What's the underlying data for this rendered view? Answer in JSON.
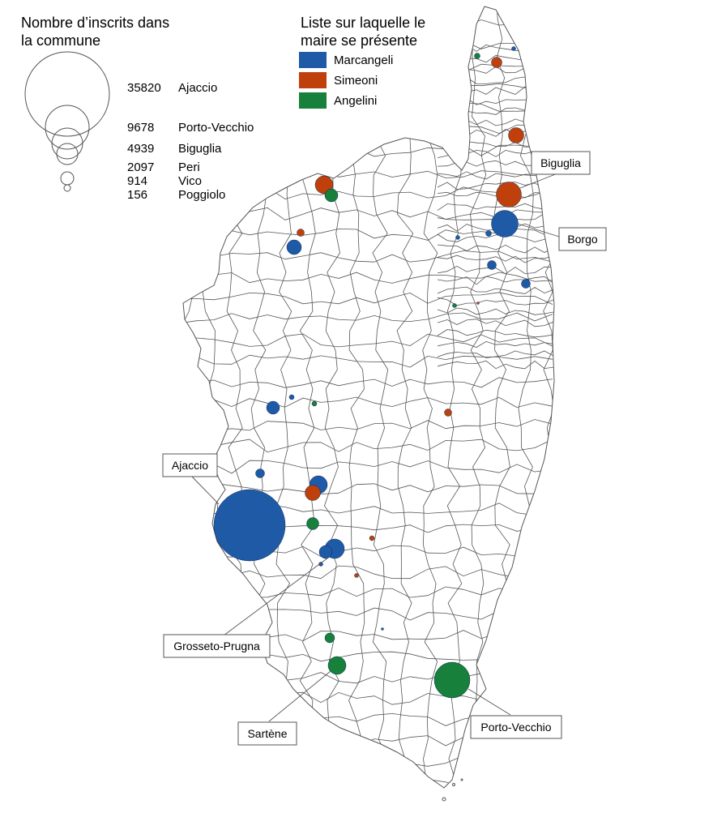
{
  "size_legend": {
    "title_line1": "Nombre d’inscrits dans",
    "title_line2": "la commune",
    "entries": [
      {
        "value": "35820",
        "name": "Ajaccio"
      },
      {
        "value": "9678",
        "name": "Porto-Vecchio"
      },
      {
        "value": "4939",
        "name": "Biguglia"
      },
      {
        "value": "2097",
        "name": "Peri"
      },
      {
        "value": "914",
        "name": "Vico"
      },
      {
        "value": "156",
        "name": "Poggiolo"
      }
    ]
  },
  "color_legend": {
    "title_line1": "Liste sur laquelle le",
    "title_line2": "maire se présente",
    "items": [
      {
        "label": "Marcangeli",
        "color": "#1f5aa6"
      },
      {
        "label": "Simeoni",
        "color": "#c0400c"
      },
      {
        "label": "Angelini",
        "color": "#17803a"
      }
    ]
  },
  "callouts": {
    "biguglia": "Biguglia",
    "borgo": "Borgo",
    "ajaccio": "Ajaccio",
    "grosseto": "Grosseto-Prugna",
    "sartene": "Sartène",
    "porto_vecchio": "Porto-Vecchio"
  },
  "colors": {
    "marcangeli": "#1f5aa6",
    "simeoni": "#c0400c",
    "angelini": "#17803a",
    "commune_border": "#555555"
  }
}
